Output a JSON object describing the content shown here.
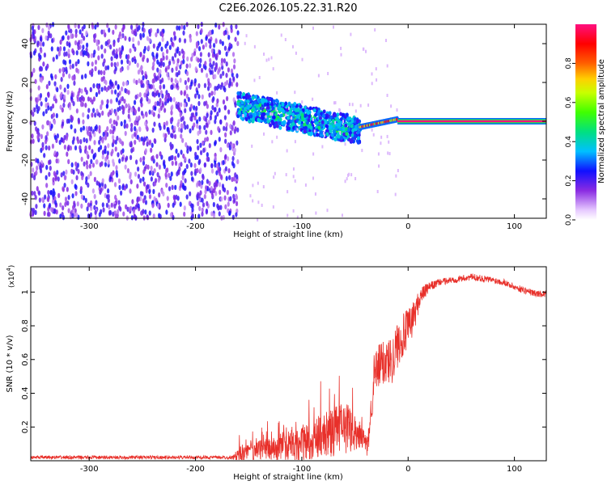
{
  "title": "C2E6.2026.105.22.31.R20",
  "chart_data": [
    {
      "type": "heatmap",
      "name": "spectrogram",
      "xlabel": "Height of straight line (km)",
      "ylabel": "Frequency (Hz)",
      "xlim": [
        -355,
        130
      ],
      "ylim": [
        -50,
        50
      ],
      "xticks": [
        -300,
        -200,
        -100,
        0,
        100
      ],
      "yticks": [
        -40,
        -20,
        0,
        20,
        40
      ],
      "grid": false,
      "colorbar": {
        "label": "Normalized spectral amplitude",
        "range": [
          0,
          1
        ],
        "ticks": [
          0.0,
          0.2,
          0.4,
          0.6,
          0.8
        ]
      },
      "regions": [
        {
          "x": [
            -355,
            -160
          ],
          "freq": [
            -50,
            50
          ],
          "amplitude": [
            0.08,
            0.25
          ],
          "description_value": "noise"
        },
        {
          "x": [
            -160,
            -45
          ],
          "freq_center_start": 8,
          "freq_center_end": -5,
          "freq_width": 14,
          "amplitude": [
            0.2,
            0.4
          ]
        },
        {
          "x": [
            -45,
            -10
          ],
          "freq_center": 1,
          "freq_width": 4,
          "amplitude": [
            0.5,
            1.0
          ]
        },
        {
          "x": [
            -10,
            130
          ],
          "freq_center": 0,
          "freq_width": 2,
          "amplitude": [
            0.95,
            1.0
          ]
        }
      ]
    },
    {
      "type": "line",
      "name": "snr",
      "xlabel": "Height of straight line (km)",
      "ylabel": "SNR (10 * v/v)",
      "scale_label": "(x10",
      "scale_exponent": "4",
      "xlim": [
        -355,
        130
      ],
      "ylim": [
        0,
        1.15
      ],
      "xticks": [
        -300,
        -200,
        -100,
        0,
        100
      ],
      "yticks": [
        0.2,
        0.4,
        0.6,
        0.8,
        1.0
      ],
      "color": "#e8302a",
      "envelope_x": [
        -355,
        -165,
        -158,
        -140,
        -120,
        -100,
        -80,
        -65,
        -55,
        -45,
        -38,
        -32,
        -25,
        -15,
        -8,
        0,
        5,
        12,
        20,
        30,
        40,
        50,
        60,
        70,
        80,
        90,
        100,
        110,
        120,
        130
      ],
      "envelope_mean": [
        0.02,
        0.02,
        0.04,
        0.07,
        0.07,
        0.1,
        0.15,
        0.18,
        0.2,
        0.15,
        0.08,
        0.5,
        0.58,
        0.6,
        0.72,
        0.78,
        0.85,
        0.98,
        1.03,
        1.06,
        1.07,
        1.08,
        1.09,
        1.08,
        1.07,
        1.06,
        1.03,
        1.01,
        0.99,
        0.99
      ],
      "envelope_noise": [
        0.01,
        0.01,
        0.05,
        0.06,
        0.07,
        0.1,
        0.13,
        0.16,
        0.15,
        0.08,
        0.06,
        0.14,
        0.14,
        0.14,
        0.14,
        0.12,
        0.1,
        0.05,
        0.03,
        0.02,
        0.02,
        0.02,
        0.02,
        0.02,
        0.02,
        0.02,
        0.02,
        0.02,
        0.02,
        0.02
      ]
    }
  ]
}
